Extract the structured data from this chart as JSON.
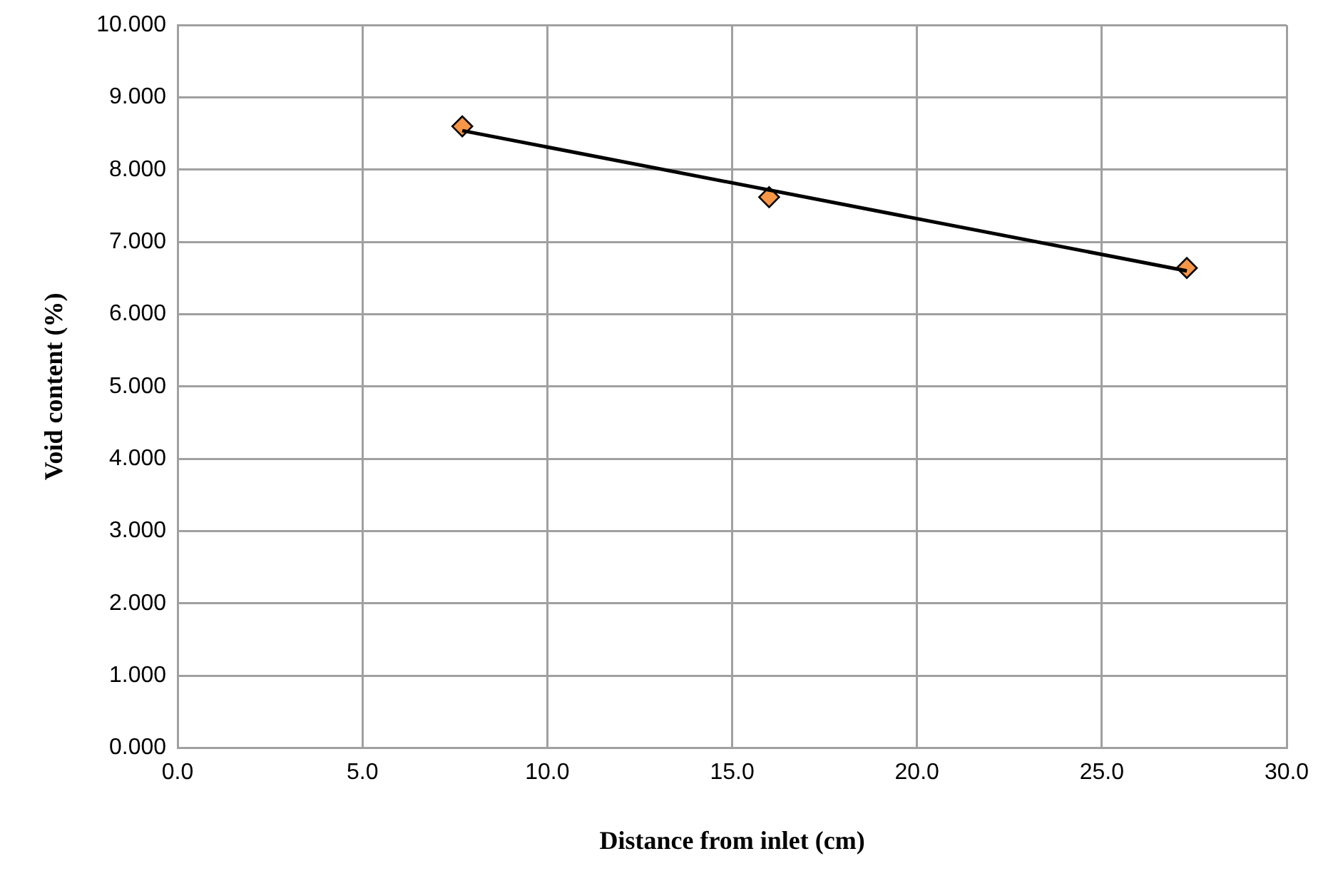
{
  "chart_data": {
    "type": "scatter",
    "xlabel": "Distance from inlet (cm)",
    "ylabel": "Void content (%)",
    "xlim": [
      0,
      30
    ],
    "xticks": [
      {
        "value": 0,
        "label": "0.0"
      },
      {
        "value": 5,
        "label": "5.0"
      },
      {
        "value": 10,
        "label": "10.0"
      },
      {
        "value": 15,
        "label": "15.0"
      },
      {
        "value": 20,
        "label": "20.0"
      },
      {
        "value": 25,
        "label": "25.0"
      },
      {
        "value": 30,
        "label": "30.0"
      }
    ],
    "ylim": [
      0,
      10
    ],
    "yticks": [
      {
        "value": 0,
        "label": "0.000"
      },
      {
        "value": 1,
        "label": "1.000"
      },
      {
        "value": 2,
        "label": "2.000"
      },
      {
        "value": 3,
        "label": "3.000"
      },
      {
        "value": 4,
        "label": "4.000"
      },
      {
        "value": 5,
        "label": "5.000"
      },
      {
        "value": 6,
        "label": "6.000"
      },
      {
        "value": 7,
        "label": "7.000"
      },
      {
        "value": 8,
        "label": "8.000"
      },
      {
        "value": 9,
        "label": "9.000"
      },
      {
        "value": 10,
        "label": "10.000"
      }
    ],
    "grid": true,
    "legend": false,
    "series": [
      {
        "type": "scatter",
        "color": "#f79646",
        "marker": "diamond",
        "x": [
          7.7,
          16.0,
          27.3
        ],
        "values": [
          8.6,
          7.62,
          6.64
        ]
      },
      {
        "type": "line",
        "color": "#000000",
        "marker": "none",
        "x": [
          7.7,
          27.3
        ],
        "values": [
          8.54,
          6.6
        ]
      }
    ]
  }
}
